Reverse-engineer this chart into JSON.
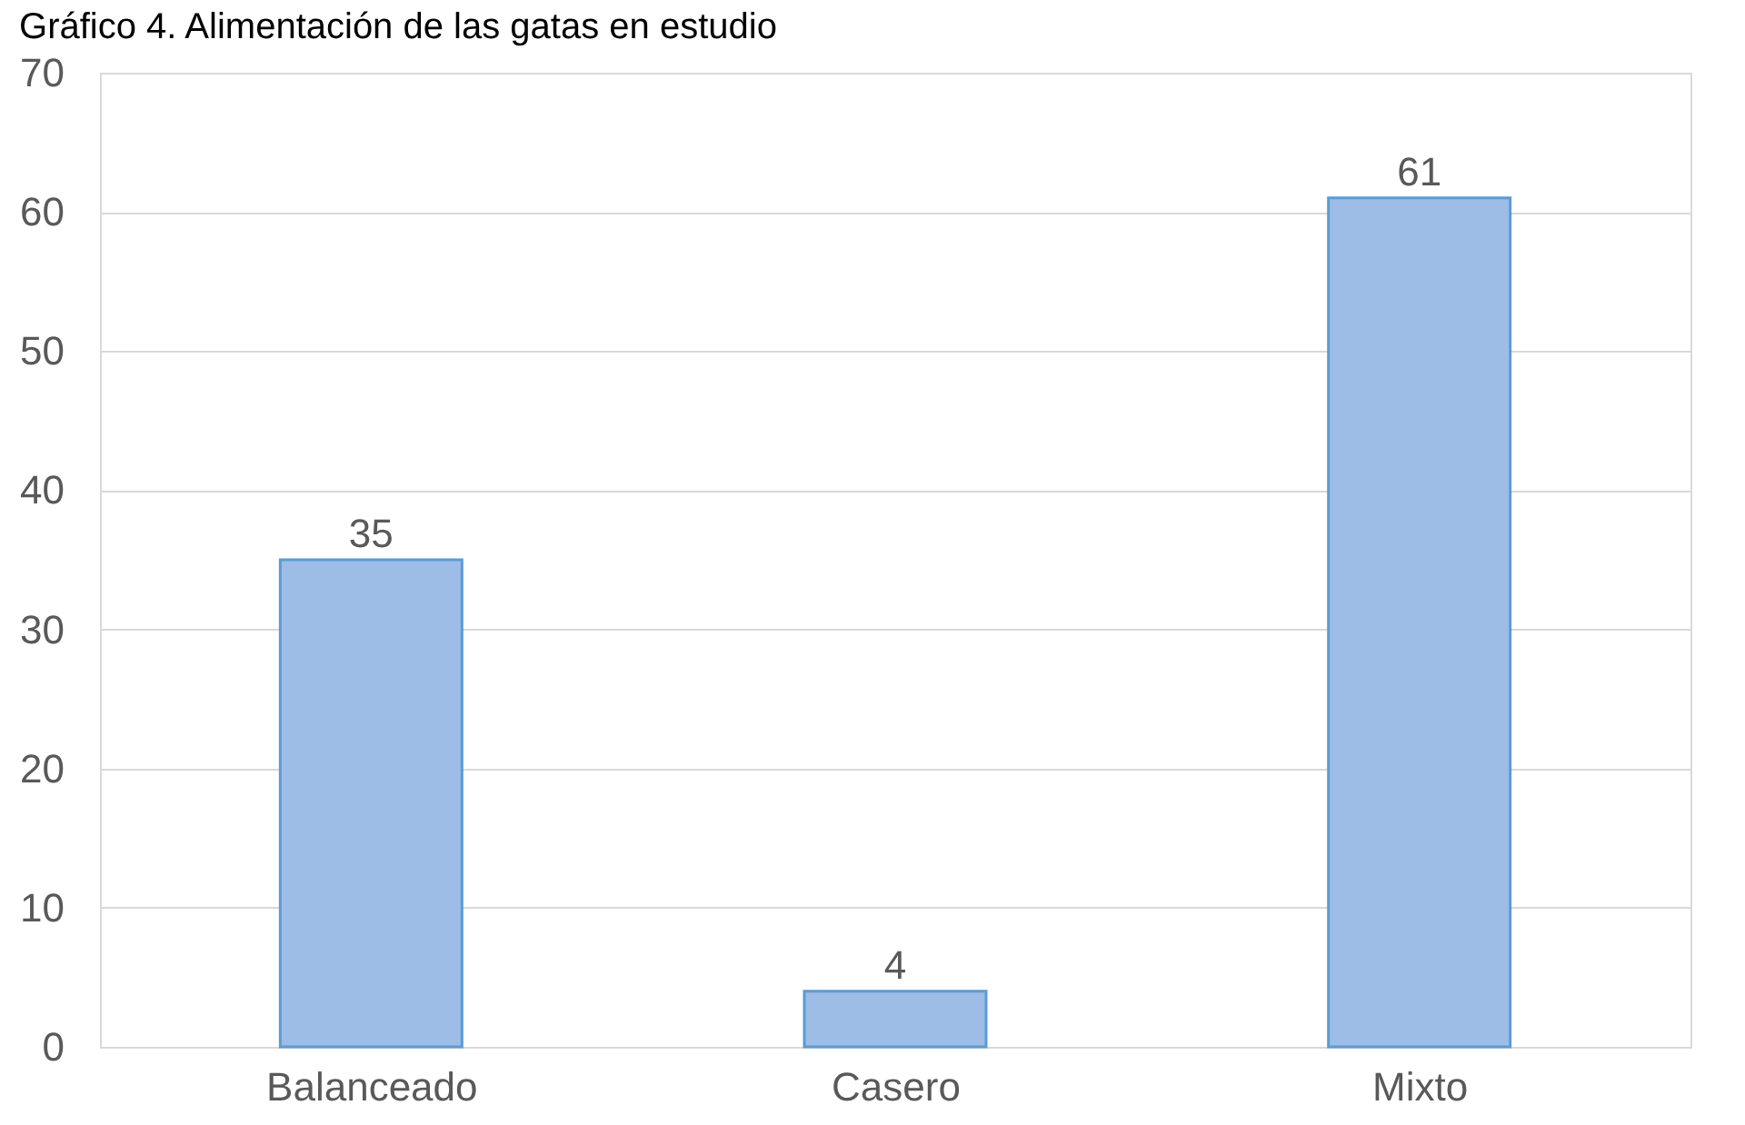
{
  "chart_data": {
    "type": "bar",
    "title": "Gráfico 4. Alimentación de las gatas en estudio",
    "categories": [
      "Balanceado",
      "Casero",
      "Mixto"
    ],
    "values": [
      35,
      4,
      61
    ],
    "color": "#9dbde6",
    "ylim": [
      0,
      70
    ],
    "yticks": [
      0,
      10,
      20,
      30,
      40,
      50,
      60,
      70
    ],
    "grid": "y",
    "data_labels": true
  }
}
